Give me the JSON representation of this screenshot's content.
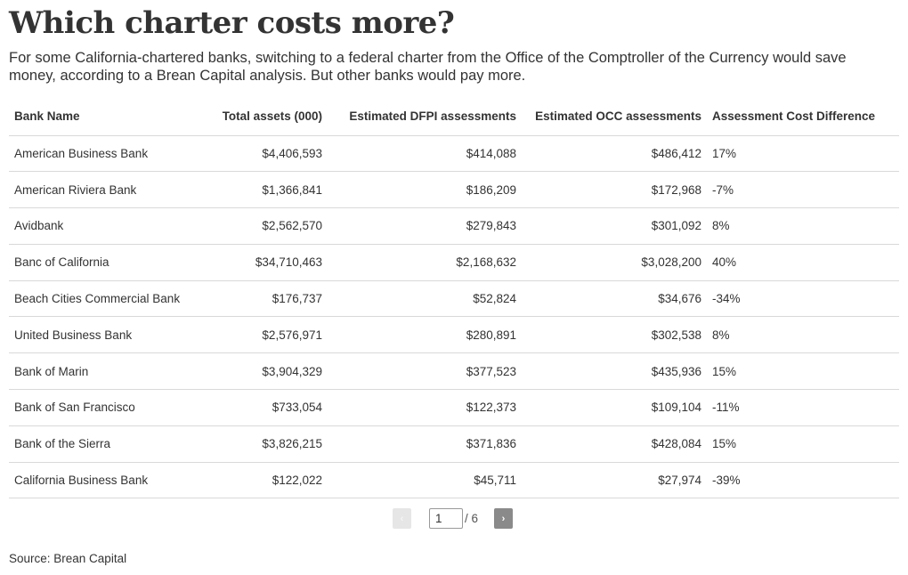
{
  "header": {
    "title": "Which charter costs more?",
    "subtitle": "For some California-chartered banks, switching to a federal charter from the Office of the Comptroller of the Currency would save money, according to a Brean Capital analysis. But other banks would pay more."
  },
  "chart_data": {
    "type": "table",
    "columns": [
      "Bank Name",
      "Total assets (000)",
      "Estimated DFPI assessments",
      "Estimated OCC assessments",
      "Assessment Cost Difference"
    ],
    "rows": [
      [
        "American Business Bank",
        "$4,406,593",
        "$414,088",
        "$486,412",
        "17%"
      ],
      [
        "American Riviera Bank",
        "$1,366,841",
        "$186,209",
        "$172,968",
        "-7%"
      ],
      [
        "Avidbank",
        "$2,562,570",
        "$279,843",
        "$301,092",
        "8%"
      ],
      [
        "Banc of California",
        "$34,710,463",
        "$2,168,632",
        "$3,028,200",
        "40%"
      ],
      [
        "Beach Cities Commercial Bank",
        "$176,737",
        "$52,824",
        "$34,676",
        "-34%"
      ],
      [
        "United Business Bank",
        "$2,576,971",
        "$280,891",
        "$302,538",
        "8%"
      ],
      [
        "Bank of Marin",
        "$3,904,329",
        "$377,523",
        "$435,936",
        "15%"
      ],
      [
        "Bank of San Francisco",
        "$733,054",
        "$122,373",
        "$109,104",
        "-11%"
      ],
      [
        "Bank of the Sierra",
        "$3,826,215",
        "$371,836",
        "$428,084",
        "15%"
      ],
      [
        "California Business Bank",
        "$122,022",
        "$45,711",
        "$27,974",
        "-39%"
      ]
    ]
  },
  "pagination": {
    "prev_icon": "chevron-left-icon",
    "prev_glyph": "‹",
    "current_page": "1",
    "total_label": "/ 6",
    "next_icon": "chevron-right-icon",
    "next_glyph": "›"
  },
  "footer": {
    "source": "Source: Brean Capital"
  },
  "colors": {
    "text": "#333333",
    "divider": "#d9d9d9",
    "next_button": "#8a8a8a",
    "prev_button_disabled": "#e6e6e6"
  }
}
